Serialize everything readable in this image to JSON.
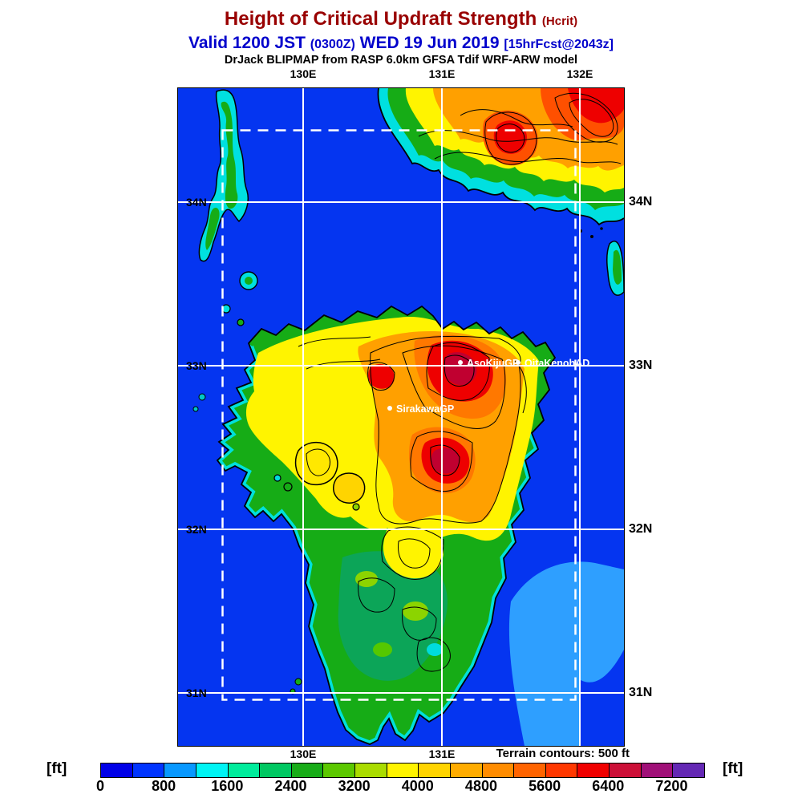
{
  "header": {
    "title_main": "Height of Critical Updraft Strength",
    "title_paren": "(Hcrit)",
    "valid_main": "Valid 1200 JST",
    "valid_paren": "(0300Z)",
    "valid_date": "WED 19 Jun 2019",
    "valid_fcst": "[15hrFcst@2043z]",
    "model_line": "DrJack BLIPMAP from RASP 6.0km GFSA Tdif WRF-ARW model",
    "title_color": "#990000",
    "valid_color": "#0000cc"
  },
  "map": {
    "top_axis": [
      "130E",
      "131E",
      "132E"
    ],
    "right_axis": [
      "34N",
      "33N",
      "32N",
      "31N"
    ],
    "interior_axis": [
      "34N",
      "33N",
      "32N",
      "31N"
    ],
    "bottom_axis": [
      "130E",
      "131E"
    ],
    "terrain_note": "Terrain contours: 500 ft",
    "sites": [
      {
        "name": "AsoKijuGP"
      },
      {
        "name": "OitaKenohAD"
      },
      {
        "name": "SirakawaGP"
      }
    ],
    "ocean_color": "#0535f0",
    "shallow_color": "#2e9fff"
  },
  "colorbar": {
    "unit": "[ft]",
    "ticks": [
      "0",
      "800",
      "1600",
      "2400",
      "3200",
      "4000",
      "4800",
      "5600",
      "6400",
      "7200"
    ],
    "segment_colors": [
      "#0000e8",
      "#0034ff",
      "#0898ff",
      "#00f4f4",
      "#00ec9c",
      "#00c862",
      "#18ac18",
      "#5cc800",
      "#aadc00",
      "#fff400",
      "#ffd400",
      "#ffac00",
      "#ff8c00",
      "#ff6400",
      "#ff3800",
      "#f00000",
      "#cc1038",
      "#a01078",
      "#6428b4"
    ]
  },
  "chart_data": {
    "type": "heatmap",
    "title": "Height of Critical Updraft Strength (Hcrit)",
    "units": "ft",
    "scale_ticks": [
      0,
      800,
      1600,
      2400,
      3200,
      4000,
      4800,
      5600,
      6400,
      7200
    ],
    "scale_range": [
      0,
      7600
    ],
    "segment_step_ft": 400,
    "terrain_contour_interval_ft": 500,
    "lon_gridlines": [
      "130E",
      "131E",
      "132E"
    ],
    "lat_gridlines": [
      "34N",
      "33N",
      "32N",
      "31N"
    ]
  }
}
